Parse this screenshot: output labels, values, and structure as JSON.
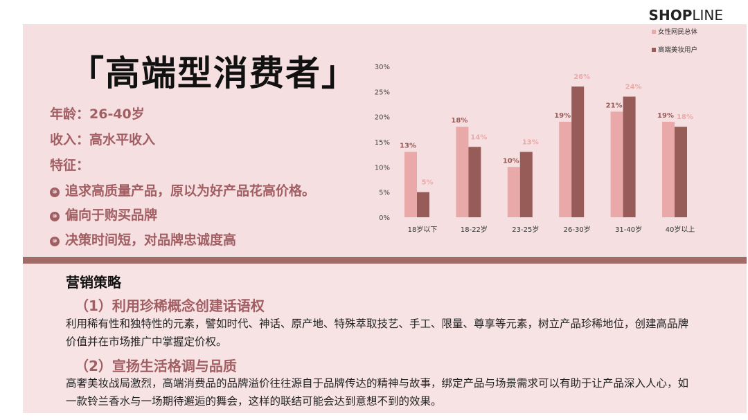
{
  "brand": {
    "logo_bold": "SHOP",
    "logo_light": "LINE"
  },
  "profile": {
    "title": "「高端型消费者」",
    "age": "年龄：26-40岁",
    "income": "收入：高水平收入",
    "features_label": "特征：",
    "bullet_glyph": "⑩",
    "features": [
      "追求高质量产品，原以为好产品花高价格。",
      "偏向于购买品牌",
      "决策时间短，对品牌忠诚度高"
    ]
  },
  "strategy": {
    "heading": "营销策略",
    "items": [
      {
        "title": "（1）利用珍稀概念创建话语权",
        "text": "利用稀有性和独特性的元素，譬如时代、神话、原产地、特殊萃取技艺、手工、限量、尊享等元素，树立产品珍稀地位，创建高品牌价值并在市场推广中掌握定价权。"
      },
      {
        "title": "（2）宣扬生活格调与品质",
        "text": "高奢美妆战局激烈，高端消费品的品牌溢价往往源自于品牌传达的精神与故事，绑定产品与场景需求可以有助于让产品深入人心，如一款铃兰香水与一场期待邂逅的舞会，这样的联结可能会达到意想不到的效果。"
      }
    ]
  },
  "chart_data": {
    "type": "bar",
    "categories": [
      "18岁以下",
      "18-22岁",
      "23-25岁",
      "26-30岁",
      "31-40岁",
      "40岁以上"
    ],
    "series": [
      {
        "name": "女性网民总体",
        "values": [
          13,
          18,
          10,
          19,
          21,
          19
        ],
        "color": "#e8a9a8",
        "label_color": "#9a5a58"
      },
      {
        "name": "高端美妆用户",
        "values": [
          5,
          14,
          13,
          26,
          24,
          18
        ],
        "color": "#975b58",
        "label_color": "#eaaaa9"
      }
    ],
    "yticks": [
      "0%",
      "5%",
      "10%",
      "15%",
      "20%",
      "25%",
      "30%"
    ],
    "ylim": [
      0,
      30
    ],
    "legend": "top-right",
    "grid": false
  }
}
